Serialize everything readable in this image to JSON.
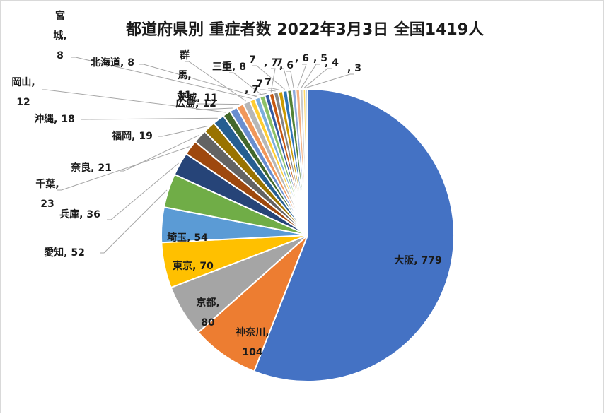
{
  "chart_data": {
    "type": "pie",
    "title": "都道府県別 重症者数 2022年3月3日 全国1419人",
    "slices": [
      {
        "name": "大阪",
        "value": 779,
        "color": "#4472C4",
        "label": "大阪, 779"
      },
      {
        "name": "神奈川",
        "value": 104,
        "color": "#ED7D31",
        "label": "神奈川, 104"
      },
      {
        "name": "京都",
        "value": 80,
        "color": "#A5A5A5",
        "label": "京都, 80"
      },
      {
        "name": "東京",
        "value": 70,
        "color": "#FFC000",
        "label": "東京, 70"
      },
      {
        "name": "埼玉",
        "value": 54,
        "color": "#5B9BD5",
        "label": "埼玉, 54"
      },
      {
        "name": "愛知",
        "value": 52,
        "color": "#70AD47",
        "label": "愛知, 52"
      },
      {
        "name": "兵庫",
        "value": 36,
        "color": "#264478",
        "label": "兵庫, 36"
      },
      {
        "name": "千葉",
        "value": 23,
        "color": "#9E480E",
        "label": "千葉, 23"
      },
      {
        "name": "奈良",
        "value": 21,
        "color": "#636363",
        "label": "奈良, 21"
      },
      {
        "name": "福岡",
        "value": 19,
        "color": "#997300",
        "label": "福岡, 19"
      },
      {
        "name": "沖縄",
        "value": 18,
        "color": "#255E91",
        "label": "沖縄, 18"
      },
      {
        "name": "岡山",
        "value": 12,
        "color": "#43682B",
        "label": "岡山, 12"
      },
      {
        "name": "広島",
        "value": 12,
        "color": "#698ED0",
        "label": "広島, 12"
      },
      {
        "name": "茨城",
        "value": 11,
        "color": "#F1975A",
        "label": "茨城, 11"
      },
      {
        "name": "群馬",
        "value": 11,
        "color": "#B7B7B7",
        "label": "群馬, 11"
      },
      {
        "name": "宮城",
        "value": 8,
        "color": "#FFCD33",
        "label": "宮城, 8"
      },
      {
        "name": "北海道",
        "value": 8,
        "color": "#7CAFDD",
        "label": "北海道, 8"
      },
      {
        "name": "三重",
        "value": 8,
        "color": "#8CC168",
        "label": "三重, 8"
      },
      {
        "name": "",
        "value": 7,
        "color": "#335AA1",
        "label": ", 7"
      },
      {
        "name": "",
        "value": 7,
        "color": "#C65911",
        "label": ", 7"
      },
      {
        "name": "",
        "value": 7,
        "color": "#848484",
        "label": "7"
      },
      {
        "name": "",
        "value": 7,
        "color": "#CC9A00",
        "label": "7"
      },
      {
        "name": "",
        "value": 7,
        "color": "#2E75B6",
        "label": "7"
      },
      {
        "name": "",
        "value": 7,
        "color": "#548235",
        "label": "7"
      },
      {
        "name": "",
        "value": 6,
        "color": "#8FAADC",
        "label": ", 6"
      },
      {
        "name": "",
        "value": 6,
        "color": "#F4B183",
        "label": ", 6"
      },
      {
        "name": "",
        "value": 5,
        "color": "#C9C9C9",
        "label": ", 5"
      },
      {
        "name": "",
        "value": 4,
        "color": "#FFD966",
        "label": ", 4"
      },
      {
        "name": "",
        "value": 3,
        "color": "#9DC3E6",
        "label": ", 3"
      }
    ],
    "total_shown": "1419"
  }
}
